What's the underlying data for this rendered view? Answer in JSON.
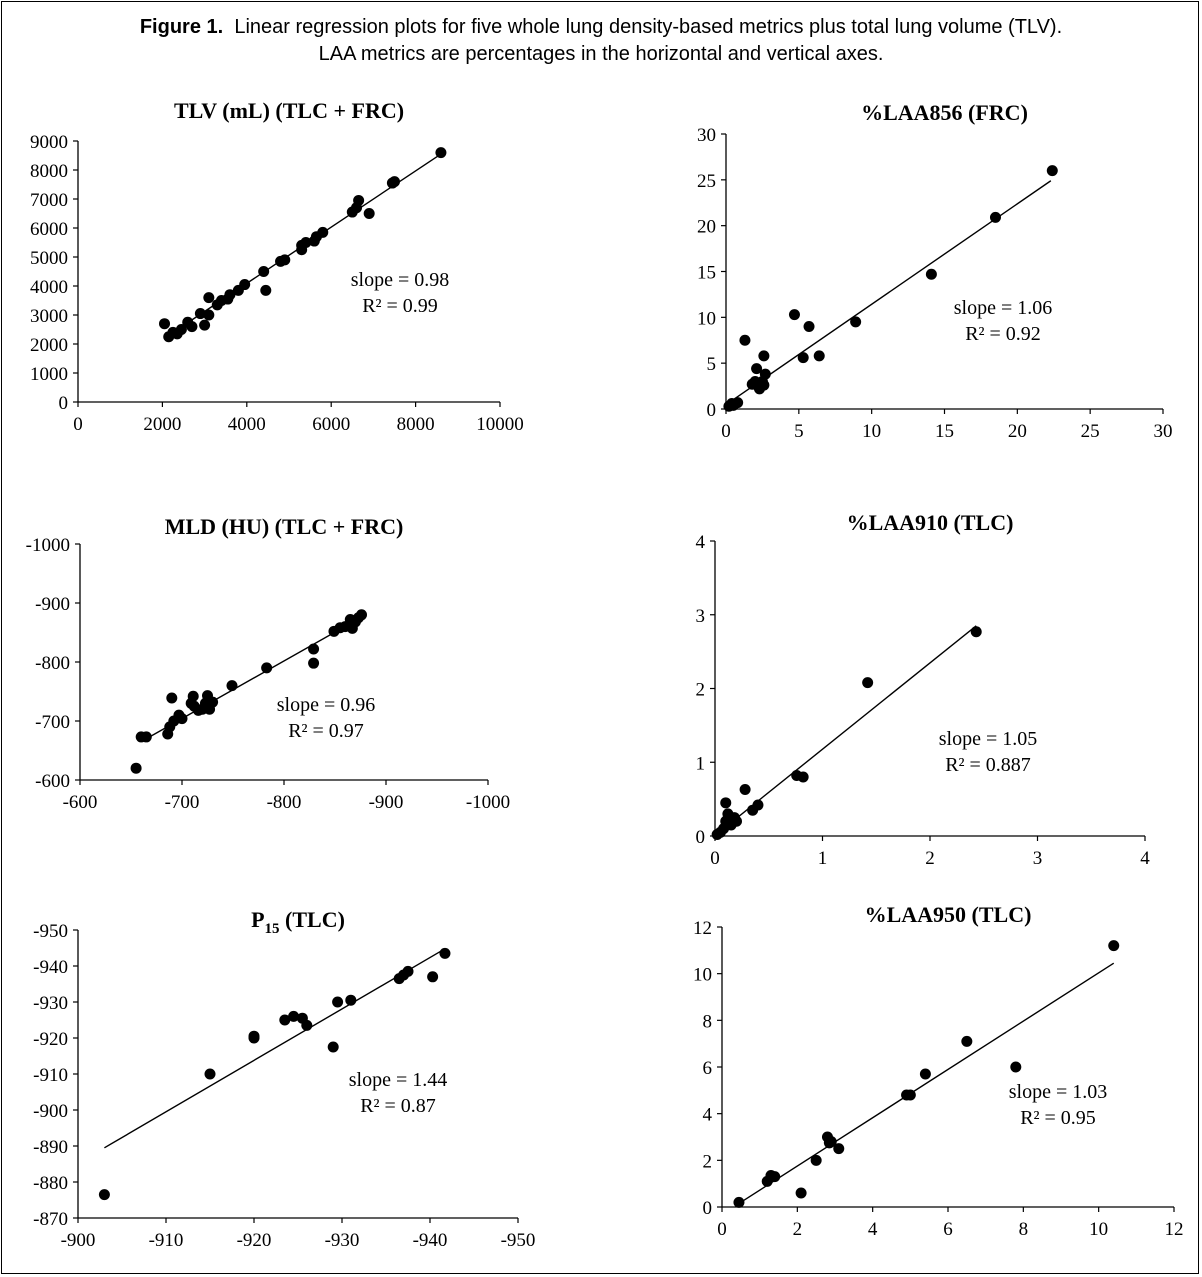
{
  "caption": {
    "lead": "Figure 1.",
    "line1": "Linear regression plots for five whole lung density-based metrics plus total lung volume (TLV).",
    "line2": "LAA metrics are percentages in the horizontal and vertical axes."
  },
  "chart_data": [
    {
      "id": "tlv",
      "type": "scatter",
      "title": "TLV (mL) (TLC + FRC)",
      "title_main": "TLV (mL) (TLC + FRC)",
      "title_sub": "",
      "title_rest": "",
      "xlim": [
        0,
        10000
      ],
      "ylim": [
        0,
        9000
      ],
      "xticks": [
        0,
        2000,
        4000,
        6000,
        8000,
        10000
      ],
      "yticks": [
        0,
        1000,
        2000,
        3000,
        4000,
        5000,
        6000,
        7000,
        8000,
        9000
      ],
      "xtick_labels": [
        "0",
        "2000",
        "4000",
        "6000",
        "8000",
        "10000"
      ],
      "ytick_labels": [
        "0",
        "1000",
        "2000",
        "3000",
        "4000",
        "5000",
        "6000",
        "7000",
        "8000",
        "9000"
      ],
      "slope_label": "slope = 0.98",
      "r2_label": "R² = 0.99",
      "fit": [
        [
          2100,
          2250
        ],
        [
          8600,
          8550
        ]
      ],
      "points": [
        [
          2050,
          2700
        ],
        [
          2150,
          2250
        ],
        [
          2250,
          2400
        ],
        [
          2350,
          2350
        ],
        [
          2450,
          2500
        ],
        [
          2600,
          2750
        ],
        [
          2700,
          2600
        ],
        [
          2900,
          3050
        ],
        [
          3000,
          2650
        ],
        [
          3100,
          3000
        ],
        [
          3100,
          3600
        ],
        [
          3300,
          3350
        ],
        [
          3400,
          3500
        ],
        [
          3550,
          3550
        ],
        [
          3600,
          3700
        ],
        [
          3800,
          3850
        ],
        [
          3950,
          4050
        ],
        [
          4400,
          4500
        ],
        [
          4450,
          3850
        ],
        [
          4800,
          4850
        ],
        [
          4900,
          4900
        ],
        [
          5300,
          5250
        ],
        [
          5300,
          5400
        ],
        [
          5400,
          5500
        ],
        [
          5600,
          5550
        ],
        [
          5650,
          5700
        ],
        [
          5800,
          5850
        ],
        [
          6500,
          6550
        ],
        [
          6600,
          6700
        ],
        [
          6650,
          6950
        ],
        [
          6900,
          6500
        ],
        [
          7450,
          7550
        ],
        [
          7500,
          7600
        ],
        [
          8600,
          8600
        ]
      ]
    },
    {
      "id": "laa856",
      "type": "scatter",
      "title": "%LAA856 (FRC)",
      "title_main": "%LAA856 (FRC)",
      "title_sub": "",
      "title_rest": "",
      "xlim": [
        0,
        30
      ],
      "ylim": [
        0,
        30
      ],
      "xticks": [
        0,
        5,
        10,
        15,
        20,
        25,
        30
      ],
      "yticks": [
        0,
        5,
        10,
        15,
        20,
        25,
        30
      ],
      "xtick_labels": [
        "0",
        "5",
        "10",
        "15",
        "20",
        "25",
        "30"
      ],
      "ytick_labels": [
        "0",
        "5",
        "10",
        "15",
        "20",
        "25",
        "30"
      ],
      "slope_label": "slope = 1.06",
      "r2_label": "R² = 0.92",
      "fit": [
        [
          0.3,
          0.8
        ],
        [
          22.3,
          24.9
        ]
      ],
      "points": [
        [
          0.2,
          0.3
        ],
        [
          0.4,
          0.6
        ],
        [
          0.5,
          0.4
        ],
        [
          0.8,
          0.7
        ],
        [
          1.3,
          7.5
        ],
        [
          1.8,
          2.7
        ],
        [
          2.0,
          3.0
        ],
        [
          2.1,
          4.4
        ],
        [
          2.2,
          2.5
        ],
        [
          2.3,
          2.2
        ],
        [
          2.5,
          3.0
        ],
        [
          2.6,
          5.8
        ],
        [
          2.7,
          3.8
        ],
        [
          2.6,
          2.6
        ],
        [
          4.7,
          10.3
        ],
        [
          5.3,
          5.6
        ],
        [
          5.7,
          9.0
        ],
        [
          6.4,
          5.8
        ],
        [
          8.9,
          9.5
        ],
        [
          14.1,
          14.7
        ],
        [
          18.5,
          20.9
        ],
        [
          22.4,
          26.0
        ]
      ]
    },
    {
      "id": "mld",
      "type": "scatter",
      "title": "MLD (HU) (TLC + FRC)",
      "title_main": "MLD (HU) (TLC + FRC)",
      "title_sub": "",
      "title_rest": "",
      "xlim": [
        -600,
        -1000
      ],
      "ylim": [
        -600,
        -1000
      ],
      "xticks": [
        -600,
        -700,
        -800,
        -900,
        -1000
      ],
      "yticks": [
        -600,
        -700,
        -800,
        -900,
        -1000
      ],
      "xtick_labels": [
        "-600",
        "-700",
        "-800",
        "-900",
        "-1000"
      ],
      "ytick_labels": [
        "-600",
        "-700",
        "-800",
        "-900",
        "-1000"
      ],
      "slope_label": "slope = 0.96",
      "r2_label": "R² = 0.97",
      "fit": [
        [
          -660,
          -665
        ],
        [
          -877,
          -877
        ]
      ],
      "points": [
        [
          -655,
          -620
        ],
        [
          -660,
          -673
        ],
        [
          -665,
          -673
        ],
        [
          -686,
          -678
        ],
        [
          -688,
          -690
        ],
        [
          -690,
          -739
        ],
        [
          -692,
          -700
        ],
        [
          -697,
          -710
        ],
        [
          -700,
          -704
        ],
        [
          -709,
          -730
        ],
        [
          -711,
          -742
        ],
        [
          -712,
          -725
        ],
        [
          -716,
          -718
        ],
        [
          -720,
          -720
        ],
        [
          -723,
          -730
        ],
        [
          -725,
          -743
        ],
        [
          -727,
          -720
        ],
        [
          -730,
          -732
        ],
        [
          -749,
          -760
        ],
        [
          -783,
          -790
        ],
        [
          -829,
          -822
        ],
        [
          -829,
          -798
        ],
        [
          -849,
          -852
        ],
        [
          -855,
          -858
        ],
        [
          -860,
          -860
        ],
        [
          -865,
          -872
        ],
        [
          -867,
          -857
        ],
        [
          -870,
          -868
        ],
        [
          -873,
          -875
        ],
        [
          -876,
          -880
        ]
      ]
    },
    {
      "id": "laa910",
      "type": "scatter",
      "title": "%LAA910 (TLC)",
      "title_main": "%LAA910 (TLC)",
      "title_sub": "",
      "title_rest": "",
      "xlim": [
        0,
        4
      ],
      "ylim": [
        0,
        4
      ],
      "xticks": [
        0,
        1,
        2,
        3,
        4
      ],
      "yticks": [
        0,
        1,
        2,
        3,
        4
      ],
      "xtick_labels": [
        "0",
        "1",
        "2",
        "3",
        "4"
      ],
      "ytick_labels": [
        "0",
        "1",
        "2",
        "3",
        "4"
      ],
      "slope_label": "slope = 1.05",
      "r2_label": "R² = 0.887",
      "fit": [
        [
          0.02,
          0.03
        ],
        [
          2.43,
          2.85
        ]
      ],
      "points": [
        [
          0.02,
          0.02
        ],
        [
          0.05,
          0.05
        ],
        [
          0.08,
          0.1
        ],
        [
          0.1,
          0.2
        ],
        [
          0.1,
          0.45
        ],
        [
          0.12,
          0.3
        ],
        [
          0.15,
          0.15
        ],
        [
          0.18,
          0.25
        ],
        [
          0.2,
          0.2
        ],
        [
          0.28,
          0.63
        ],
        [
          0.35,
          0.35
        ],
        [
          0.4,
          0.42
        ],
        [
          0.76,
          0.82
        ],
        [
          0.82,
          0.8
        ],
        [
          1.42,
          2.08
        ],
        [
          2.43,
          2.77
        ]
      ]
    },
    {
      "id": "p15",
      "type": "scatter",
      "title": "P15 (TLC)",
      "title_main": "P",
      "title_sub": "15",
      "title_rest": " (TLC)",
      "xlim": [
        -900,
        -950
      ],
      "ylim": [
        -870,
        -950
      ],
      "xticks": [
        -900,
        -910,
        -920,
        -930,
        -940,
        -950
      ],
      "yticks": [
        -870,
        -880,
        -890,
        -900,
        -910,
        -920,
        -930,
        -940,
        -950
      ],
      "xtick_labels": [
        "-900",
        "-910",
        "-920",
        "-930",
        "-940",
        "-950"
      ],
      "ytick_labels": [
        "-870",
        "-880",
        "-890",
        "-900",
        "-910",
        "-920",
        "-930",
        "-940",
        "-950"
      ],
      "slope_label": "slope = 1.44",
      "r2_label": "R² = 0.87",
      "fit": [
        [
          -903,
          -889.5
        ],
        [
          -941.5,
          -944.5
        ]
      ],
      "points": [
        [
          -903,
          -876.5
        ],
        [
          -915,
          -910
        ],
        [
          -920,
          -920
        ],
        [
          -920,
          -920.5
        ],
        [
          -923.5,
          -925
        ],
        [
          -924.5,
          -926
        ],
        [
          -925.5,
          -925.5
        ],
        [
          -926,
          -923.5
        ],
        [
          -929,
          -917.5
        ],
        [
          -929.5,
          -930
        ],
        [
          -931,
          -930.5
        ],
        [
          -936.5,
          -936.5
        ],
        [
          -937,
          -937.5
        ],
        [
          -937.5,
          -938.5
        ],
        [
          -940.3,
          -937
        ],
        [
          -941.7,
          -943.5
        ]
      ]
    },
    {
      "id": "laa950",
      "type": "scatter",
      "title": "%LAA950 (TLC)",
      "title_main": "%LAA950 (TLC)",
      "title_sub": "",
      "title_rest": "",
      "xlim": [
        0,
        12
      ],
      "ylim": [
        0,
        12
      ],
      "xticks": [
        0,
        2,
        4,
        6,
        8,
        10,
        12
      ],
      "yticks": [
        0,
        2,
        4,
        6,
        8,
        10,
        12
      ],
      "xtick_labels": [
        "0",
        "2",
        "4",
        "6",
        "8",
        "10",
        "12"
      ],
      "ytick_labels": [
        "0",
        "2",
        "4",
        "6",
        "8",
        "10",
        "12"
      ],
      "slope_label": "slope = 1.03",
      "r2_label": "R² = 0.95",
      "fit": [
        [
          0.4,
          0.1
        ],
        [
          10.4,
          10.45
        ]
      ],
      "points": [
        [
          0.45,
          0.2
        ],
        [
          1.2,
          1.1
        ],
        [
          1.3,
          1.35
        ],
        [
          1.4,
          1.3
        ],
        [
          2.1,
          0.6
        ],
        [
          2.5,
          2.0
        ],
        [
          2.8,
          3.0
        ],
        [
          2.85,
          2.75
        ],
        [
          2.9,
          2.8
        ],
        [
          3.1,
          2.5
        ],
        [
          4.9,
          4.8
        ],
        [
          5.0,
          4.8
        ],
        [
          5.4,
          5.7
        ],
        [
          6.5,
          7.1
        ],
        [
          7.8,
          6.0
        ],
        [
          10.4,
          11.2
        ]
      ]
    }
  ]
}
